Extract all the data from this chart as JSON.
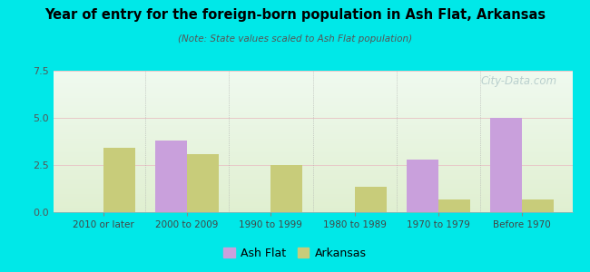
{
  "categories": [
    "2010 or later",
    "2000 to 2009",
    "1990 to 1999",
    "1980 to 1989",
    "1970 to 1979",
    "Before 1970"
  ],
  "ash_flat": [
    0,
    3.8,
    0,
    0,
    2.8,
    5.0
  ],
  "arkansas": [
    3.4,
    3.1,
    2.5,
    1.35,
    0.65,
    0.65
  ],
  "ash_flat_color": "#c9a0dc",
  "arkansas_color": "#c8cc7a",
  "title": "Year of entry for the foreign-born population in Ash Flat, Arkansas",
  "subtitle": "(Note: State values scaled to Ash Flat population)",
  "ylim": [
    0,
    7.5
  ],
  "yticks": [
    0,
    2.5,
    5,
    7.5
  ],
  "background_outer": "#00e8e8",
  "legend_labels": [
    "Ash Flat",
    "Arkansas"
  ],
  "watermark": "City-Data.com",
  "bar_width": 0.38
}
